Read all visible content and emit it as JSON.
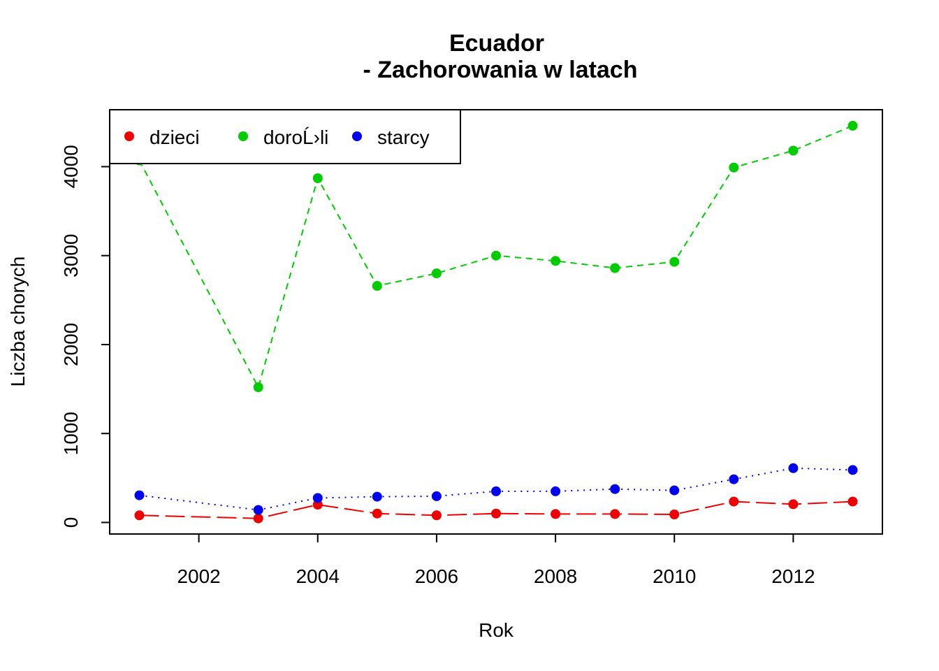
{
  "chart_data": {
    "type": "line",
    "title": "Ecuador",
    "subtitle": "- Zachorowania w latach",
    "xlabel": "Rok",
    "ylabel": "Liczba chorych",
    "xlim": [
      2000.5,
      2013.5
    ],
    "ylim": [
      -130,
      4640
    ],
    "x_ticks": [
      2002,
      2004,
      2006,
      2008,
      2010,
      2012
    ],
    "y_ticks": [
      0,
      1000,
      2000,
      3000,
      4000
    ],
    "x_tick_labels": [
      "2002",
      "2004",
      "2006",
      "2008",
      "2010",
      "2012"
    ],
    "y_tick_labels": [
      "0",
      "1000",
      "2000",
      "3000",
      "4000"
    ],
    "grid": false,
    "legend_position": "top-left",
    "x": [
      2001,
      2003,
      2004,
      2005,
      2006,
      2007,
      2008,
      2009,
      2010,
      2011,
      2012,
      2013
    ],
    "series": [
      {
        "name": "dzieci",
        "color": "#ee0000",
        "line_style": "long-dash",
        "values": [
          80,
          45,
          200,
          100,
          80,
          100,
          95,
          95,
          90,
          235,
          205,
          235
        ]
      },
      {
        "name": "doroĹ›li",
        "color": "#00cc00",
        "line_style": "dashed",
        "values": [
          4070,
          1520,
          3870,
          2660,
          2800,
          3000,
          2940,
          2860,
          2930,
          3990,
          4180,
          4460
        ]
      },
      {
        "name": "starcy",
        "color": "#0000ee",
        "line_style": "dotted",
        "values": [
          305,
          140,
          275,
          290,
          295,
          350,
          350,
          375,
          360,
          485,
          610,
          590
        ]
      }
    ]
  }
}
